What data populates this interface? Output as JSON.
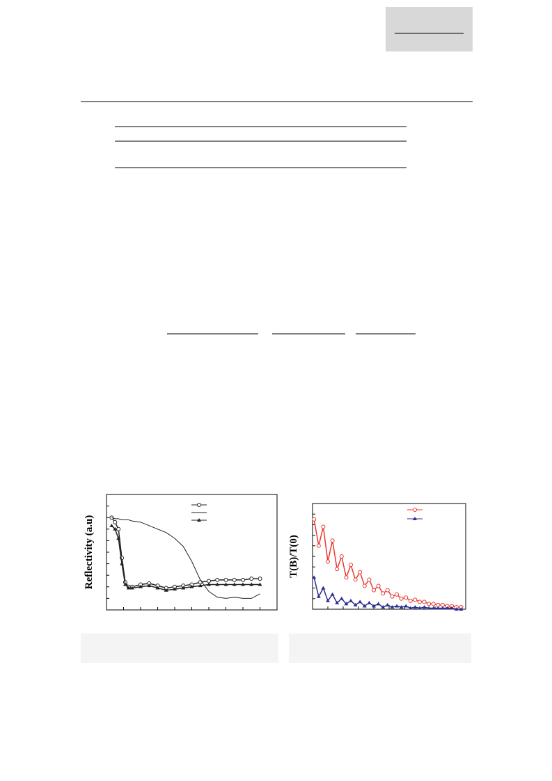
{
  "chart_data": [
    {
      "type": "line",
      "y_label": "Reflectivity (a.u)",
      "xlim": [
        0,
        100
      ],
      "ylim": [
        0,
        100
      ],
      "x": [
        3,
        5,
        7,
        9,
        11,
        13,
        15,
        20,
        25,
        30,
        35,
        40,
        45,
        50,
        55,
        60,
        65,
        70,
        75,
        80,
        85,
        90
      ],
      "series": [
        {
          "color": "#222222",
          "marker": "circle",
          "values": [
            80,
            76,
            70,
            45,
            24,
            20,
            20,
            22,
            23,
            21,
            19,
            20,
            21,
            22,
            24,
            25,
            26,
            26,
            26,
            26,
            27,
            27
          ]
        },
        {
          "color": "#222222",
          "marker": "none",
          "values": [
            80,
            79,
            79,
            78,
            78,
            78,
            77,
            76,
            73,
            70,
            67,
            62,
            55,
            42,
            26,
            16,
            11,
            10,
            11,
            10,
            10,
            14
          ]
        },
        {
          "color": "#222222",
          "marker": "triangle",
          "values": [
            73,
            70,
            62,
            40,
            22,
            19,
            19,
            20,
            21,
            19,
            17,
            18,
            19,
            20,
            21,
            22,
            22,
            22,
            22,
            22,
            22,
            22
          ]
        }
      ]
    },
    {
      "type": "line",
      "y_label": "T(B)/T(0)",
      "xlim": [
        0,
        100
      ],
      "ylim": [
        0,
        100
      ],
      "x": [
        1,
        4,
        7,
        10,
        13,
        16,
        19,
        22,
        25,
        28,
        31,
        34,
        37,
        40,
        43,
        46,
        49,
        52,
        55,
        58,
        61,
        64,
        67,
        70,
        73,
        76,
        79,
        82,
        85,
        88,
        91,
        94,
        97
      ],
      "series": [
        {
          "color": "#e8392f",
          "marker": "circle",
          "values": [
            85,
            60,
            78,
            45,
            65,
            38,
            50,
            30,
            42,
            28,
            35,
            22,
            28,
            18,
            22,
            15,
            18,
            12,
            14,
            10,
            11,
            8,
            9,
            7,
            7,
            5,
            5,
            4,
            4,
            3,
            3,
            2,
            2
          ]
        },
        {
          "color": "#2b2f8f",
          "marker": "triangle",
          "values": [
            30,
            12,
            20,
            8,
            14,
            6,
            10,
            5,
            8,
            4,
            7,
            3,
            6,
            3,
            5,
            2,
            4,
            2,
            3,
            2,
            3,
            1,
            2,
            1,
            2,
            1,
            1,
            1,
            1,
            1,
            1,
            0,
            0
          ]
        }
      ]
    }
  ]
}
